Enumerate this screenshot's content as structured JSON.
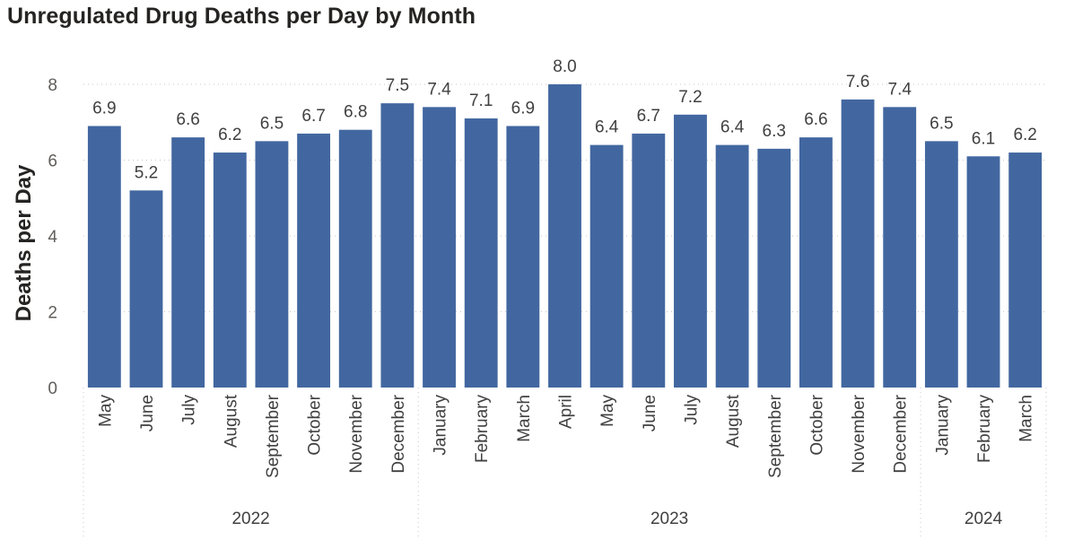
{
  "chart_data": {
    "type": "bar",
    "title": "Unregulated Drug Deaths per Day by Month",
    "xlabel": "",
    "ylabel": "Deaths per Day",
    "ylim": [
      0,
      8
    ],
    "yticks": [
      0,
      2,
      4,
      6,
      8
    ],
    "grid": true,
    "bar_color": "#4267a0",
    "categories": [
      "May",
      "June",
      "July",
      "August",
      "September",
      "October",
      "November",
      "December",
      "January",
      "February",
      "March",
      "April",
      "May",
      "June",
      "July",
      "August",
      "September",
      "October",
      "November",
      "December",
      "January",
      "February",
      "March"
    ],
    "years": [
      {
        "label": "2022",
        "count": 8
      },
      {
        "label": "2023",
        "count": 12
      },
      {
        "label": "2024",
        "count": 3
      }
    ],
    "values": [
      6.9,
      5.2,
      6.6,
      6.2,
      6.5,
      6.7,
      6.8,
      7.5,
      7.4,
      7.1,
      6.9,
      8.0,
      6.4,
      6.7,
      7.2,
      6.4,
      6.3,
      6.6,
      7.6,
      7.4,
      6.5,
      6.1,
      6.2
    ],
    "data_labels": [
      "6.9",
      "5.2",
      "6.6",
      "6.2",
      "6.5",
      "6.7",
      "6.8",
      "7.5",
      "7.4",
      "7.1",
      "6.9",
      "8.0",
      "6.4",
      "6.7",
      "7.2",
      "6.4",
      "6.3",
      "6.6",
      "7.6",
      "7.4",
      "6.5",
      "6.1",
      "6.2"
    ]
  }
}
